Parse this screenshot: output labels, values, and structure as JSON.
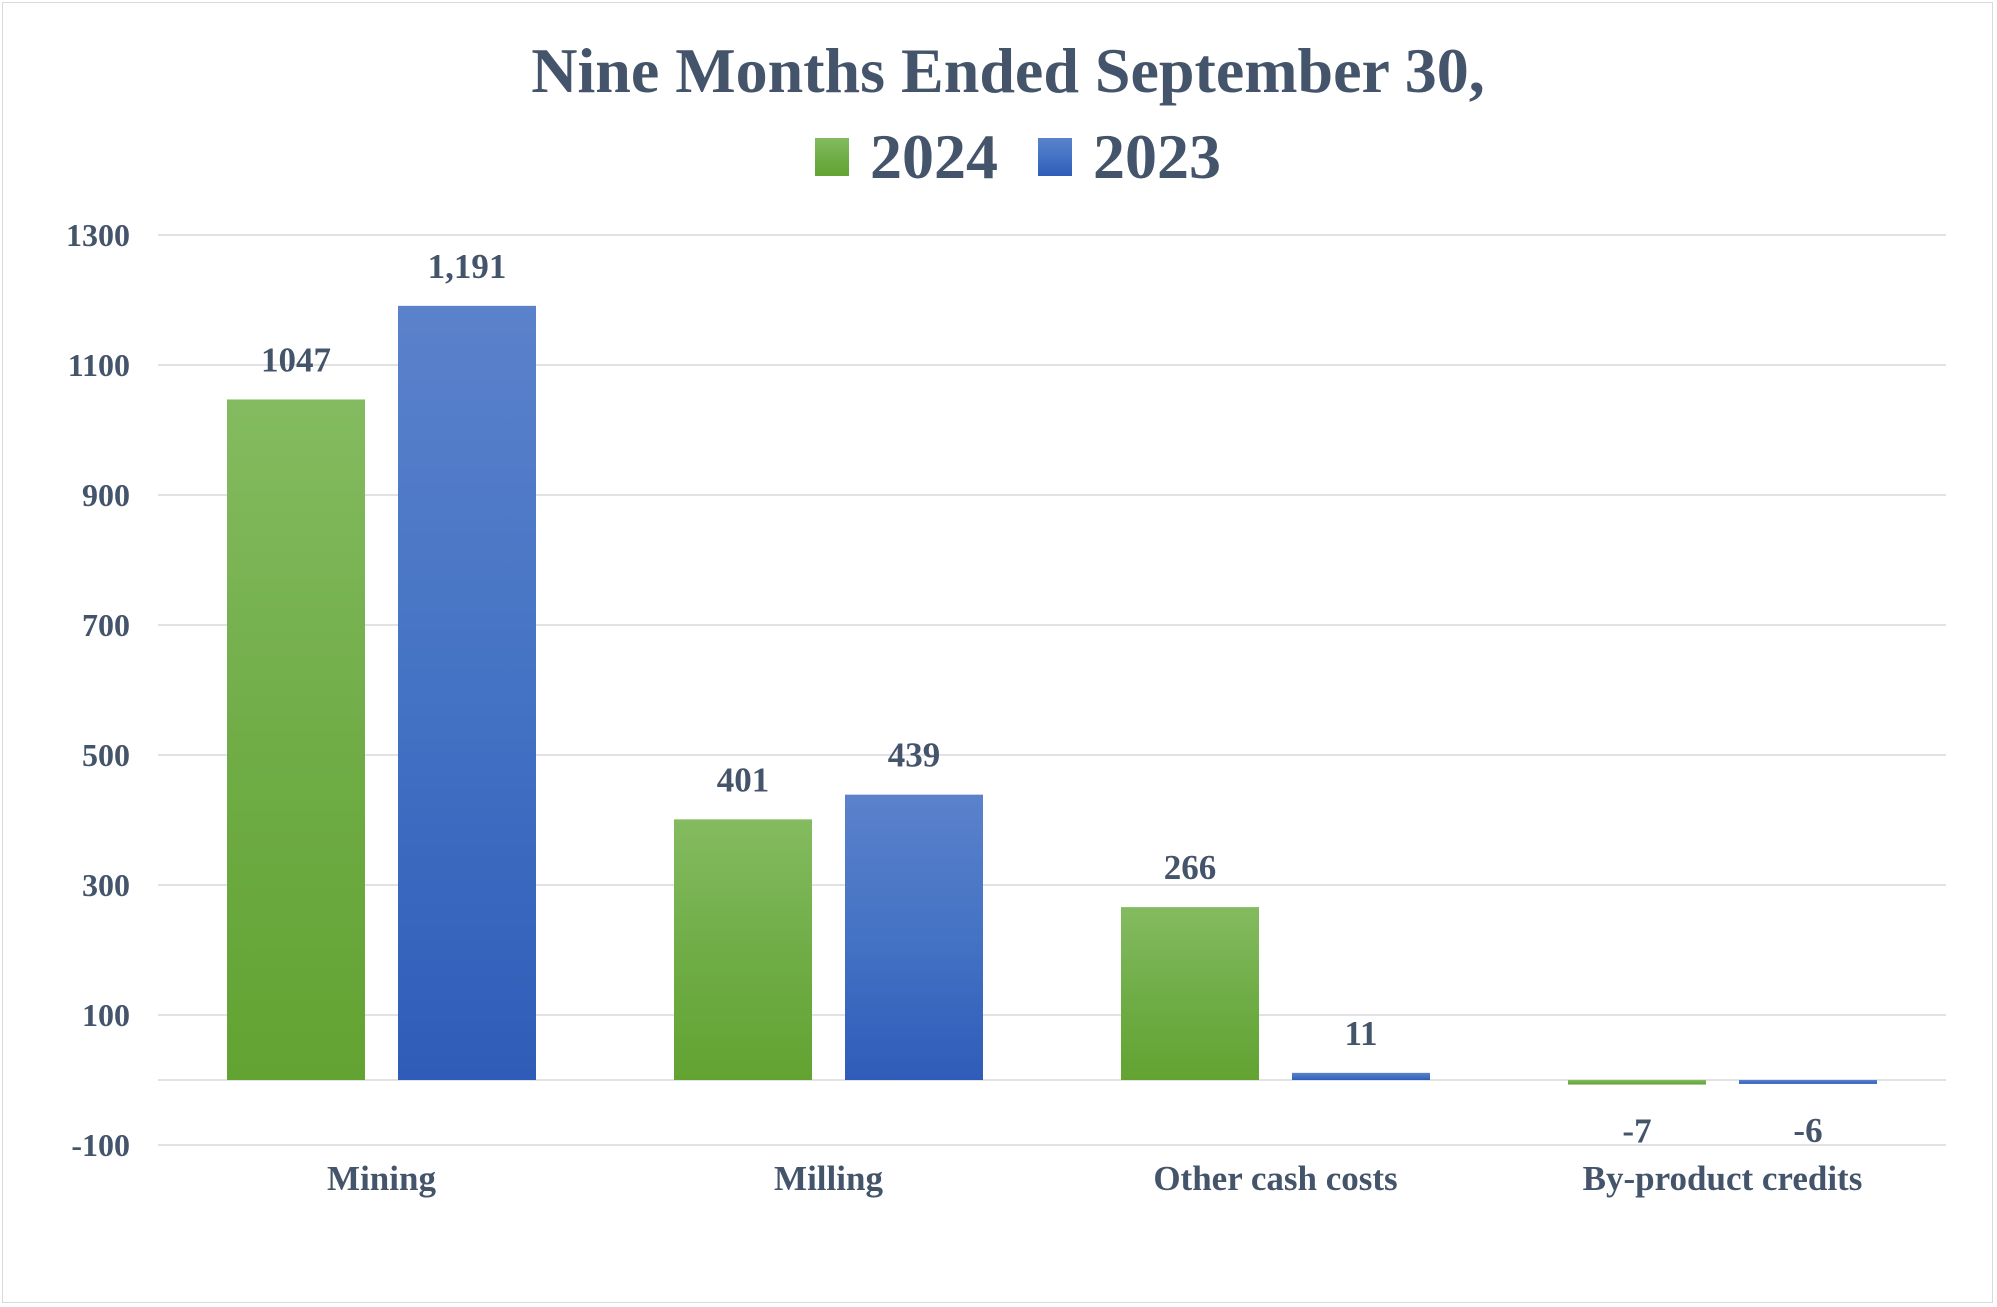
{
  "chart_data": {
    "type": "bar",
    "title": "Nine Months Ended September 30,",
    "categories": [
      "Mining",
      "Milling",
      "Other cash costs",
      "By-product credits"
    ],
    "series": [
      {
        "name": "2024",
        "color": "#70ad47",
        "color_light": "#84bb60",
        "color_dark": "#62a332",
        "values": [
          1047,
          401,
          266,
          -7
        ],
        "labels": [
          "1047",
          "401",
          "266",
          "-7"
        ]
      },
      {
        "name": "2023",
        "color": "#4472c4",
        "color_light": "#5b82cb",
        "color_dark": "#2f5cb8",
        "values": [
          1191,
          439,
          11,
          -6
        ],
        "labels": [
          "1,191",
          "439",
          "11",
          "-6"
        ]
      }
    ],
    "yticks": [
      -100,
      100,
      300,
      500,
      700,
      900,
      1100,
      1300
    ],
    "ylim": [
      -100,
      1300
    ],
    "xlabel": "",
    "ylabel": "",
    "legend_position": "top"
  }
}
